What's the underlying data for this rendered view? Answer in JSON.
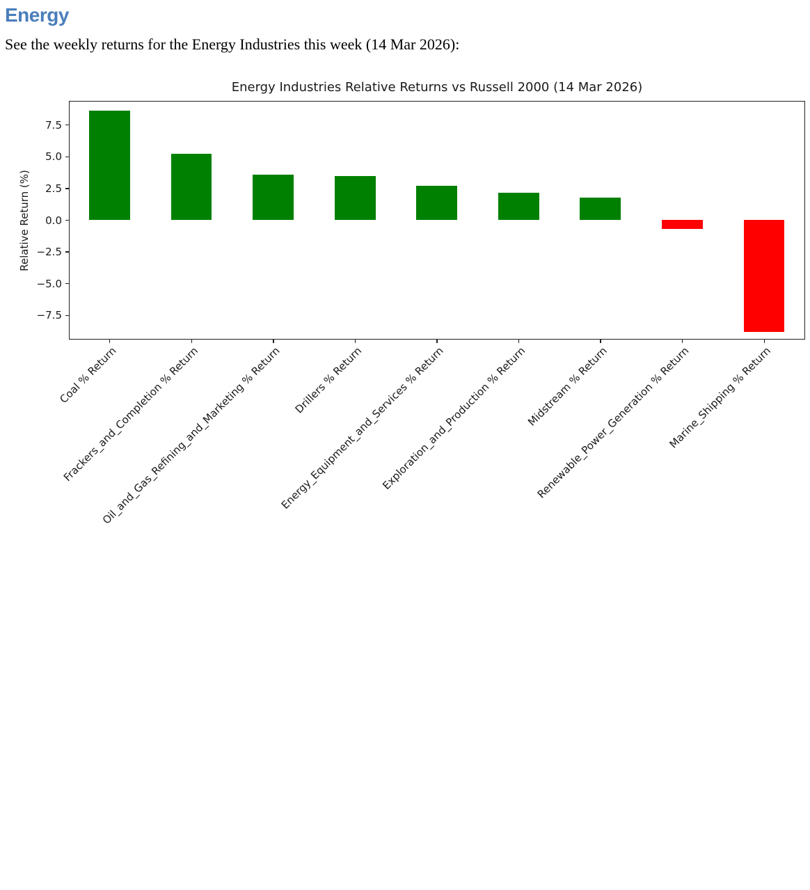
{
  "page": {
    "heading": "Energy",
    "intro": "See the weekly returns for the Energy Industries this week (14 Mar 2026):"
  },
  "chart_data": {
    "type": "bar",
    "title": "Energy Industries Relative Returns vs Russell 2000 (14 Mar 2026)",
    "xlabel": "",
    "ylabel": "Relative Return (%)",
    "categories": [
      "Coal % Return",
      "Frackers_and_Completion % Return",
      "Oil_and_Gas_Refining_and_Marketing % Return",
      "Drillers % Return",
      "Energy_Equipment_and_Services % Return",
      "Exploration_and_Production % Return",
      "Midstream % Return",
      "Renewable_Power_Generation % Return",
      "Marine_Shipping % Return"
    ],
    "values": [
      8.6,
      5.2,
      3.6,
      3.45,
      2.7,
      2.15,
      1.75,
      -0.7,
      -8.8
    ],
    "yticks": [
      7.5,
      5.0,
      2.5,
      0.0,
      -2.5,
      -5.0,
      -7.5
    ],
    "ylim": [
      -9.4,
      9.4
    ],
    "grid": false,
    "legend": null,
    "x_tick_rotation": 45,
    "bar_width_fraction": 0.5,
    "positive_color": "#008000",
    "negative_color": "#ff0000",
    "axis_color": "#1f1f1f"
  }
}
